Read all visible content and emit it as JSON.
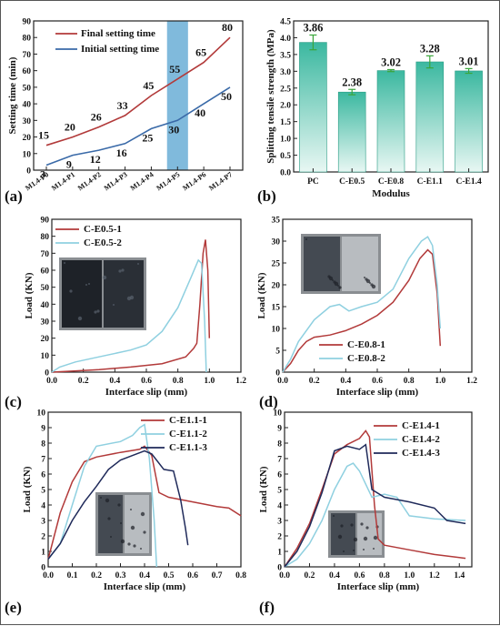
{
  "figure": {
    "panels": [
      "(a)",
      "(b)",
      "(c)",
      "(d)",
      "(e)",
      "(f)"
    ]
  },
  "colors": {
    "red": "#b23a3a",
    "blue": "#3a6aa8",
    "cyan": "#8fd0e0",
    "navy": "#1f2a5a",
    "band": "#6aaed6",
    "bar_top": "#3bb8a0",
    "bar_bottom": "#e8f7f3",
    "err": "#3aa63a"
  },
  "chart_data": [
    {
      "id": "a",
      "type": "line",
      "ylabel": "Setting time (min)",
      "xlabel": "",
      "categories": [
        "M1.4-P0",
        "M1.4-P1",
        "M1.4-P2",
        "M1.4-P3",
        "M1.4-P4",
        "M1.4-P5",
        "M1.4-P6",
        "M1.4-P7"
      ],
      "ylim": [
        0,
        90
      ],
      "yticks": [
        0,
        10,
        20,
        30,
        40,
        50,
        60,
        70,
        80,
        90
      ],
      "highlight_category": "M1.4-P5",
      "legend_position": "top-left",
      "series": [
        {
          "name": "Final setting time",
          "color": "#b23a3a",
          "values": [
            15,
            20,
            26,
            33,
            45,
            55,
            65,
            80
          ]
        },
        {
          "name": "Initial setting time",
          "color": "#3a6aa8",
          "values": [
            3,
            9,
            12,
            16,
            25,
            30,
            40,
            50
          ]
        }
      ]
    },
    {
      "id": "b",
      "type": "bar",
      "ylabel": "Splitting tensile strength (MPa)",
      "xlabel": "Modulus",
      "categories": [
        "PC",
        "C-E0.5",
        "C-E0.8",
        "C-E1.1",
        "C-E1.4"
      ],
      "values": [
        3.86,
        2.38,
        3.02,
        3.28,
        3.01
      ],
      "value_labels": [
        "3.86",
        "2.38",
        "3.02",
        "3.28",
        "3.01"
      ],
      "errors": [
        0.22,
        0.08,
        0.03,
        0.18,
        0.07
      ],
      "ylim": [
        0,
        4.5
      ],
      "yticks": [
        0,
        0.5,
        1,
        1.5,
        2,
        2.5,
        3,
        3.5,
        4,
        4.5
      ],
      "ytick_labels": [
        "0.0",
        "0.5",
        "1.0",
        "1.5",
        "2.0",
        "2.5",
        "3.0",
        "3.5",
        "4.0",
        "4.5"
      ]
    },
    {
      "id": "c",
      "type": "line",
      "xlabel": "Interface slip (mm)",
      "ylabel": "Load (KN)",
      "xlim": [
        0,
        1.2
      ],
      "ylim": [
        0,
        90
      ],
      "xticks": [
        0,
        0.2,
        0.4,
        0.6,
        0.8,
        1.0,
        1.2
      ],
      "xtick_labels": [
        "0.0",
        "0.2",
        "0.4",
        "0.6",
        "0.8",
        "1.0",
        "1.2"
      ],
      "yticks": [
        0,
        10,
        20,
        30,
        40,
        50,
        60,
        70,
        80,
        90
      ],
      "legend_position": "top-left",
      "photo_position": "left",
      "series": [
        {
          "name": "C-E0.5-1",
          "color": "#b23a3a",
          "points": [
            [
              0,
              0
            ],
            [
              0.1,
              0.5
            ],
            [
              0.3,
              1.5
            ],
            [
              0.5,
              3
            ],
            [
              0.7,
              5
            ],
            [
              0.85,
              9
            ],
            [
              0.9,
              14
            ],
            [
              0.92,
              17
            ],
            [
              0.94,
              40
            ],
            [
              0.96,
              70
            ],
            [
              0.975,
              78
            ],
            [
              0.99,
              60
            ],
            [
              1.0,
              20
            ]
          ]
        },
        {
          "name": "C-E0.5-2",
          "color": "#8fd0e0",
          "points": [
            [
              0,
              0
            ],
            [
              0.05,
              3
            ],
            [
              0.15,
              6
            ],
            [
              0.3,
              9
            ],
            [
              0.5,
              13
            ],
            [
              0.6,
              16
            ],
            [
              0.7,
              24
            ],
            [
              0.8,
              38
            ],
            [
              0.88,
              55
            ],
            [
              0.93,
              66
            ],
            [
              0.95,
              64
            ],
            [
              0.97,
              30
            ],
            [
              0.98,
              0
            ]
          ]
        }
      ]
    },
    {
      "id": "d",
      "type": "line",
      "xlabel": "Interface slip (mm)",
      "ylabel": "Load (KN)",
      "xlim": [
        0,
        1.2
      ],
      "ylim": [
        0,
        35
      ],
      "xticks": [
        0,
        0.2,
        0.4,
        0.6,
        0.8,
        1.0,
        1.2
      ],
      "xtick_labels": [
        "0.0",
        "0.2",
        "0.4",
        "0.6",
        "0.8",
        "1.0",
        "1.2"
      ],
      "yticks": [
        0,
        5,
        10,
        15,
        20,
        25,
        30,
        35
      ],
      "legend_position": "bottom-left",
      "photo_position": "top-left",
      "series": [
        {
          "name": "C-E0.8-1",
          "color": "#b23a3a",
          "points": [
            [
              0,
              0
            ],
            [
              0.05,
              2
            ],
            [
              0.1,
              5
            ],
            [
              0.15,
              7
            ],
            [
              0.2,
              8
            ],
            [
              0.3,
              8.5
            ],
            [
              0.4,
              9.5
            ],
            [
              0.5,
              11
            ],
            [
              0.6,
              13
            ],
            [
              0.7,
              16
            ],
            [
              0.8,
              21
            ],
            [
              0.87,
              26
            ],
            [
              0.92,
              28
            ],
            [
              0.95,
              27
            ],
            [
              0.98,
              18
            ],
            [
              1.0,
              6
            ]
          ]
        },
        {
          "name": "C-E0.8-2",
          "color": "#8fd0e0",
          "points": [
            [
              0,
              0
            ],
            [
              0.05,
              3
            ],
            [
              0.1,
              7
            ],
            [
              0.2,
              12
            ],
            [
              0.3,
              15
            ],
            [
              0.36,
              15.5
            ],
            [
              0.42,
              14
            ],
            [
              0.5,
              15
            ],
            [
              0.6,
              16
            ],
            [
              0.7,
              19
            ],
            [
              0.8,
              26
            ],
            [
              0.88,
              30
            ],
            [
              0.92,
              31
            ],
            [
              0.95,
              29
            ],
            [
              0.98,
              20
            ],
            [
              1.0,
              10
            ]
          ]
        }
      ]
    },
    {
      "id": "e",
      "type": "line",
      "xlabel": "Interface slip (mm)",
      "ylabel": "Load (KN)",
      "xlim": [
        0,
        0.8
      ],
      "ylim": [
        0,
        10
      ],
      "xticks": [
        0,
        0.1,
        0.2,
        0.3,
        0.4,
        0.5,
        0.6,
        0.7,
        0.8
      ],
      "xtick_labels": [
        "0.0",
        "0.1",
        "0.2",
        "0.3",
        "0.4",
        "0.5",
        "0.6",
        "0.7",
        "0.8"
      ],
      "yticks": [
        0,
        1,
        2,
        3,
        4,
        5,
        6,
        7,
        8,
        9,
        10
      ],
      "legend_position": "top-right",
      "photo_position": "bottom-center",
      "series": [
        {
          "name": "C-E1.1-1",
          "color": "#b23a3a",
          "points": [
            [
              0,
              0.5
            ],
            [
              0.05,
              3.5
            ],
            [
              0.1,
              5.5
            ],
            [
              0.15,
              6.8
            ],
            [
              0.2,
              7.1
            ],
            [
              0.3,
              7.4
            ],
            [
              0.38,
              7.6
            ],
            [
              0.4,
              7.8
            ],
            [
              0.43,
              7.2
            ],
            [
              0.46,
              4.8
            ],
            [
              0.5,
              4.5
            ],
            [
              0.6,
              4.2
            ],
            [
              0.7,
              3.9
            ],
            [
              0.75,
              3.8
            ],
            [
              0.8,
              3.3
            ]
          ]
        },
        {
          "name": "C-E1.1-2",
          "color": "#8fd0e0",
          "points": [
            [
              0,
              0.5
            ],
            [
              0.05,
              1.5
            ],
            [
              0.1,
              4
            ],
            [
              0.15,
              6.5
            ],
            [
              0.2,
              7.8
            ],
            [
              0.3,
              8.1
            ],
            [
              0.35,
              8.5
            ],
            [
              0.38,
              9.0
            ],
            [
              0.4,
              9.2
            ],
            [
              0.42,
              7
            ],
            [
              0.44,
              3
            ],
            [
              0.45,
              0
            ]
          ]
        },
        {
          "name": "C-E1.1-3",
          "color": "#1f2a5a",
          "points": [
            [
              0,
              0.5
            ],
            [
              0.05,
              1.5
            ],
            [
              0.1,
              3
            ],
            [
              0.15,
              4.2
            ],
            [
              0.2,
              5.2
            ],
            [
              0.25,
              6.3
            ],
            [
              0.3,
              6.9
            ],
            [
              0.35,
              7.2
            ],
            [
              0.4,
              7.5
            ],
            [
              0.43,
              7.3
            ],
            [
              0.48,
              6.3
            ],
            [
              0.52,
              6.2
            ],
            [
              0.55,
              4.3
            ],
            [
              0.57,
              2.5
            ],
            [
              0.58,
              1.4
            ]
          ]
        }
      ]
    },
    {
      "id": "f",
      "type": "line",
      "xlabel": "Interface slip (mm)",
      "ylabel": "Load (KN)",
      "xlim": [
        0,
        1.5
      ],
      "ylim": [
        0,
        10
      ],
      "xticks": [
        0,
        0.2,
        0.4,
        0.6,
        0.8,
        1.0,
        1.2,
        1.4
      ],
      "xtick_labels": [
        "0.0",
        "0.2",
        "0.4",
        "0.6",
        "0.8",
        "1.0",
        "1.2",
        "1.4"
      ],
      "yticks": [
        0,
        1,
        2,
        3,
        4,
        5,
        6,
        7,
        8,
        9,
        10
      ],
      "legend_position": "top-right",
      "photo_position": "bottom-center",
      "series": [
        {
          "name": "C-E1.4-1",
          "color": "#b23a3a",
          "points": [
            [
              0,
              0
            ],
            [
              0.1,
              1.2
            ],
            [
              0.2,
              2.8
            ],
            [
              0.3,
              5
            ],
            [
              0.4,
              7.3
            ],
            [
              0.5,
              7.9
            ],
            [
              0.6,
              8.3
            ],
            [
              0.65,
              8.8
            ],
            [
              0.68,
              8.4
            ],
            [
              0.72,
              4
            ],
            [
              0.75,
              1.8
            ],
            [
              0.8,
              1.4
            ],
            [
              1.0,
              1.1
            ],
            [
              1.2,
              0.8
            ],
            [
              1.4,
              0.6
            ],
            [
              1.45,
              0.55
            ]
          ]
        },
        {
          "name": "C-E1.4-2",
          "color": "#8fd0e0",
          "points": [
            [
              0,
              0
            ],
            [
              0.1,
              0.5
            ],
            [
              0.2,
              1.5
            ],
            [
              0.3,
              3
            ],
            [
              0.4,
              5
            ],
            [
              0.5,
              6.5
            ],
            [
              0.55,
              6.7
            ],
            [
              0.6,
              6.2
            ],
            [
              0.7,
              4.5
            ],
            [
              0.8,
              4.7
            ],
            [
              0.9,
              4.5
            ],
            [
              1.0,
              3.3
            ],
            [
              1.2,
              3.1
            ],
            [
              1.45,
              3.0
            ]
          ]
        },
        {
          "name": "C-E1.4-3",
          "color": "#1f2a5a",
          "points": [
            [
              0,
              0
            ],
            [
              0.1,
              1
            ],
            [
              0.2,
              2.6
            ],
            [
              0.3,
              4.8
            ],
            [
              0.4,
              7.5
            ],
            [
              0.5,
              7.8
            ],
            [
              0.6,
              7.6
            ],
            [
              0.65,
              7.9
            ],
            [
              0.7,
              5
            ],
            [
              0.8,
              4.5
            ],
            [
              1.0,
              4.2
            ],
            [
              1.2,
              3.8
            ],
            [
              1.3,
              3.0
            ],
            [
              1.45,
              2.8
            ]
          ]
        }
      ]
    }
  ]
}
